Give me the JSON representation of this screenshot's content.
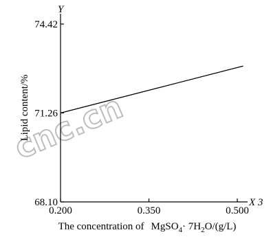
{
  "chart_data": {
    "type": "line",
    "xlabel_prefix": "The concentration of",
    "xlabel_formula": [
      "MgSO",
      "4",
      "· 7H",
      "2",
      "O/(g/L)"
    ],
    "ylabel": "Lipid content/%",
    "y_axis_name": "Y",
    "x_axis_name": "X 3",
    "xlim": [
      0.2,
      0.5
    ],
    "ylim": [
      68.1,
      74.42
    ],
    "x_ticks": [
      0.2,
      0.35,
      0.5
    ],
    "x_tick_labels": [
      "0.200",
      "0.350",
      "0.500"
    ],
    "y_ticks": [
      68.1,
      71.26,
      74.42
    ],
    "y_tick_labels": [
      "68.10",
      "71.26",
      "74.42"
    ],
    "series": [
      {
        "x": [
          0.2,
          0.51
        ],
        "y": [
          71.26,
          72.93
        ]
      }
    ],
    "watermark": "cnc.cn"
  }
}
